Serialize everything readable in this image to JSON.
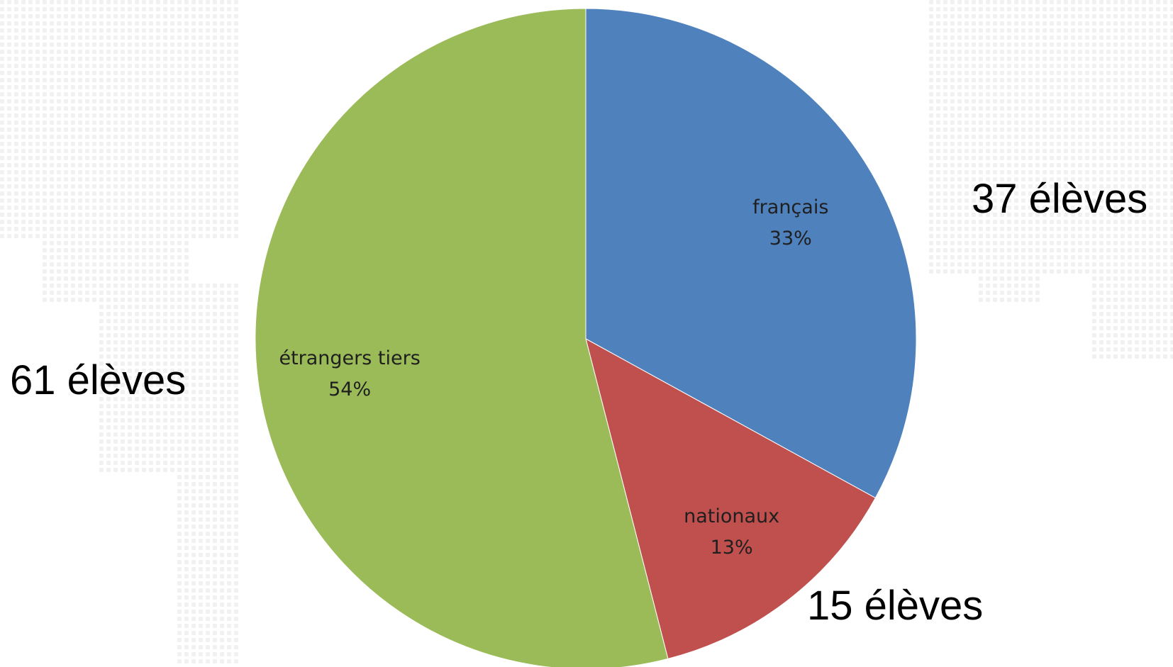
{
  "chart_data": {
    "type": "pie",
    "title": "",
    "start_angle_deg": 0,
    "direction": "clockwise",
    "slices": [
      {
        "name": "français",
        "value": 33,
        "percent_label": "33%",
        "count_label": "37 élèves",
        "color": "#4f81bd"
      },
      {
        "name": "nationaux",
        "value": 13,
        "percent_label": "13%",
        "count_label": "15 élèves",
        "color": "#c0504d"
      },
      {
        "name": "étrangers tiers",
        "value": 54,
        "percent_label": "54%",
        "count_label": "61 élèves",
        "color": "#9bbb59"
      }
    ],
    "legend": "none"
  }
}
